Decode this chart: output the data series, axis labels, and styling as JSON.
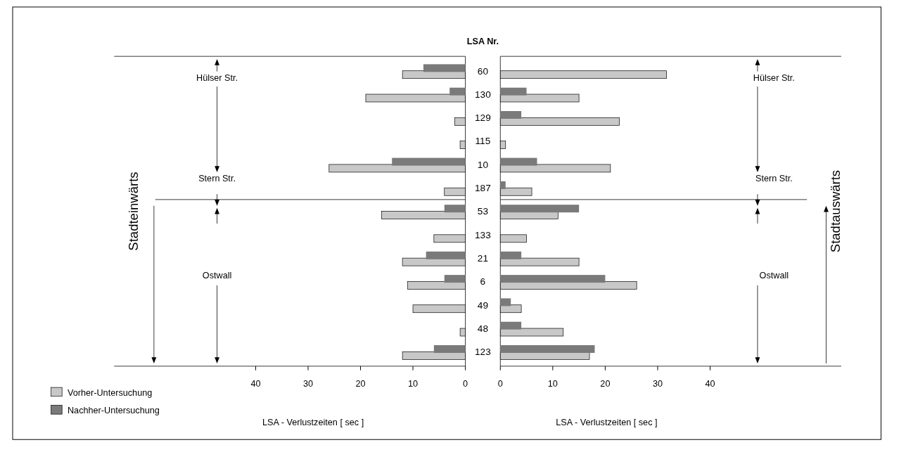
{
  "chart_data": [
    {
      "type": "bar",
      "orientation": "horizontal",
      "title": "LSA Nr.",
      "xlabel": "LSA - Verlustzeiten [ sec ]",
      "categories": [
        "60",
        "130",
        "129",
        "115",
        "10",
        "187",
        "53",
        "133",
        "21",
        "6",
        "49",
        "48",
        "123"
      ],
      "series": [
        {
          "name": "Vorher-Untersuchung",
          "color": "#c8c8c8",
          "values": [
            12,
            19,
            2,
            1,
            26,
            4,
            16,
            6,
            12,
            11,
            10,
            1,
            12
          ]
        },
        {
          "name": "Nachher-Untersuchung",
          "color": "#7a7a7a",
          "values": [
            8,
            3,
            0,
            0,
            14,
            0,
            4,
            0,
            7.5,
            4,
            0,
            0,
            6
          ]
        }
      ],
      "xlim": [
        67,
        0
      ],
      "xticks": [
        40,
        30,
        20,
        10,
        0
      ],
      "legend": "bottom left",
      "annotations": [
        "Hülser Str.",
        "Stern Str.",
        "Ostwall",
        "Stadteinwärts"
      ]
    },
    {
      "type": "bar",
      "orientation": "horizontal",
      "xlabel": "LSA - Verlustzeiten [ sec ]",
      "categories": [
        "60",
        "130",
        "129",
        "115",
        "10",
        "187",
        "53",
        "133",
        "21",
        "6",
        "49",
        "48",
        "123"
      ],
      "series": [
        {
          "color": "#c8c8c8",
          "values": [
            31.7,
            15,
            22.7,
            1,
            21,
            6,
            11,
            5,
            15,
            26,
            4,
            12,
            17
          ]
        },
        {
          "color": "#7a7a7a",
          "values": [
            0,
            5,
            4,
            0,
            7,
            1,
            15,
            0,
            4,
            20,
            2,
            4,
            18
          ]
        }
      ],
      "xlim": [
        0,
        65
      ],
      "xticks": [
        0,
        10,
        20,
        30,
        40
      ],
      "tick_labels": "x",
      "annotations": [
        "Hülser Str.",
        "Stern Str.",
        "Ostwall",
        "Stadtauswärts"
      ]
    }
  ]
}
